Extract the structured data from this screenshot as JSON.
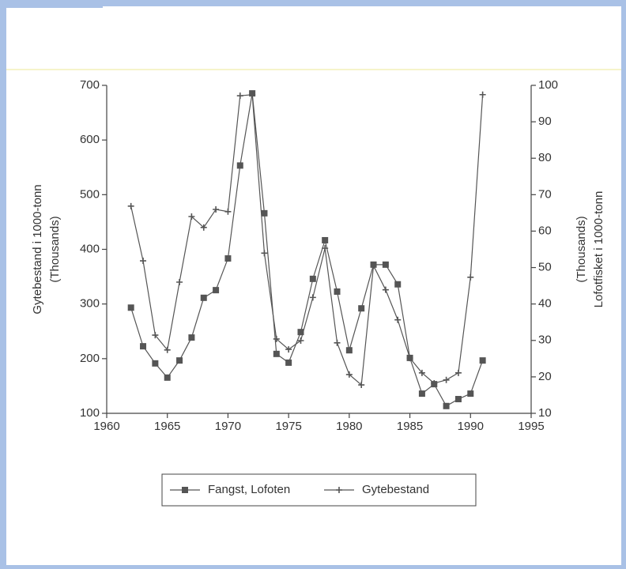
{
  "chart_data": {
    "type": "line",
    "x": [
      1962,
      1963,
      1964,
      1965,
      1966,
      1967,
      1968,
      1969,
      1970,
      1971,
      1972,
      1973,
      1974,
      1975,
      1976,
      1977,
      1978,
      1979,
      1980,
      1981,
      1982,
      1983,
      1984,
      1985,
      1986,
      1987,
      1988,
      1989,
      1990,
      1991
    ],
    "xlim": [
      1960,
      1995
    ],
    "xticks": [
      1960,
      1965,
      1970,
      1975,
      1980,
      1985,
      1990,
      1995
    ],
    "ylim": [
      100,
      700
    ],
    "yticks": [
      100,
      200,
      300,
      400,
      500,
      600,
      700
    ],
    "y2lim": [
      10,
      100
    ],
    "y2ticks": [
      10,
      20,
      30,
      40,
      50,
      60,
      70,
      80,
      90,
      100
    ],
    "ylabel": [
      "Gytebestand i 1000-tonn",
      "(Thousands)"
    ],
    "y2label": [
      "(Thousands)",
      "Lofotfisket i 1000-tonn"
    ],
    "series": [
      {
        "name": "Fangst, Lofoten",
        "axis": "y2",
        "marker": "square",
        "color": "#555555",
        "values": [
          39,
          28.4,
          23.7,
          19.8,
          24.5,
          30.8,
          41.7,
          43.8,
          52.5,
          78,
          97.8,
          64.9,
          26.3,
          23.9,
          32.3,
          46.9,
          57.5,
          43.4,
          27.3,
          38.8,
          50.8,
          50.8,
          45.4,
          25.2,
          15.4,
          18,
          12,
          13.9,
          15.4,
          24.5
        ]
      },
      {
        "name": "Gytebestand",
        "marker": "plus",
        "color": "#555555",
        "values": [
          479,
          379,
          243,
          216,
          340,
          460,
          440,
          473,
          469,
          681,
          683,
          393,
          236,
          217,
          233,
          312,
          402,
          229,
          171,
          152,
          370,
          326,
          271,
          201,
          174,
          155,
          161,
          174,
          349,
          683
        ]
      }
    ]
  }
}
